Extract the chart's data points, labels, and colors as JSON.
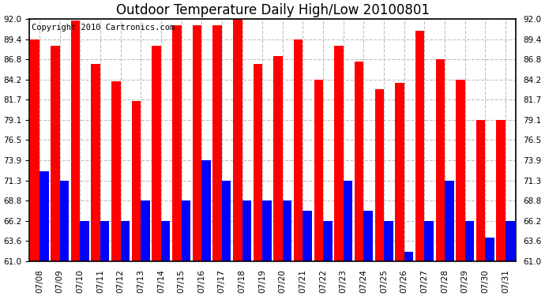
{
  "title": "Outdoor Temperature Daily High/Low 20100801",
  "copyright": "Copyright 2010 Cartronics.com",
  "dates": [
    "07/08",
    "07/09",
    "07/10",
    "07/11",
    "07/12",
    "07/13",
    "07/14",
    "07/15",
    "07/16",
    "07/17",
    "07/18",
    "07/19",
    "07/20",
    "07/21",
    "07/22",
    "07/23",
    "07/24",
    "07/25",
    "07/26",
    "07/27",
    "07/28",
    "07/29",
    "07/30",
    "07/31"
  ],
  "highs": [
    89.4,
    88.5,
    91.8,
    86.2,
    84.0,
    81.5,
    88.5,
    91.2,
    91.2,
    91.2,
    92.0,
    86.2,
    87.2,
    89.4,
    84.2,
    88.5,
    86.5,
    83.0,
    83.8,
    90.5,
    86.8,
    84.2,
    79.1,
    79.1
  ],
  "lows": [
    72.5,
    71.3,
    66.2,
    66.2,
    66.2,
    68.8,
    66.2,
    68.8,
    73.9,
    71.3,
    68.8,
    68.8,
    68.8,
    67.5,
    66.2,
    71.3,
    67.5,
    66.2,
    62.2,
    66.2,
    71.3,
    66.2,
    64.0,
    66.2
  ],
  "high_color": "#ff0000",
  "low_color": "#0000ff",
  "bg_color": "#ffffff",
  "grid_color": "#c0c0c0",
  "ymin": 61.0,
  "ymax": 92.0,
  "yticks": [
    61.0,
    63.6,
    66.2,
    68.8,
    71.3,
    73.9,
    76.5,
    79.1,
    81.7,
    84.2,
    86.8,
    89.4,
    92.0
  ],
  "title_fontsize": 12,
  "tick_fontsize": 7.5,
  "copyright_fontsize": 7.5
}
